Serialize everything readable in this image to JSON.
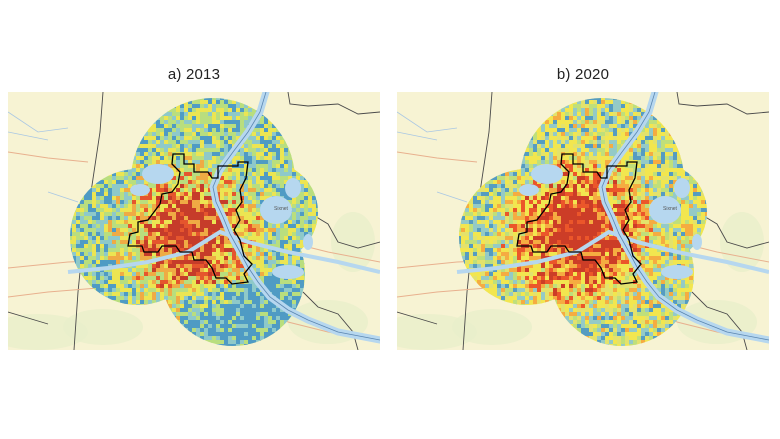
{
  "panels": [
    {
      "id": "a",
      "title": "a) 2013",
      "base_color": "#b9de7e"
    },
    {
      "id": "b",
      "title": "b) 2020",
      "base_color": "#e3e26c"
    }
  ],
  "legend_colors": [
    "#3c8fd0",
    "#86c6d6",
    "#b9de7e",
    "#f4e64a",
    "#f8a23a",
    "#ec3d1f",
    "#c8201b"
  ],
  "basemap": {
    "land": "#f7f3d3",
    "water": "#b6d7ef",
    "roads": "#e8b08e",
    "boundaries": "#4a4a4a"
  },
  "map_label": "Sixnet"
}
